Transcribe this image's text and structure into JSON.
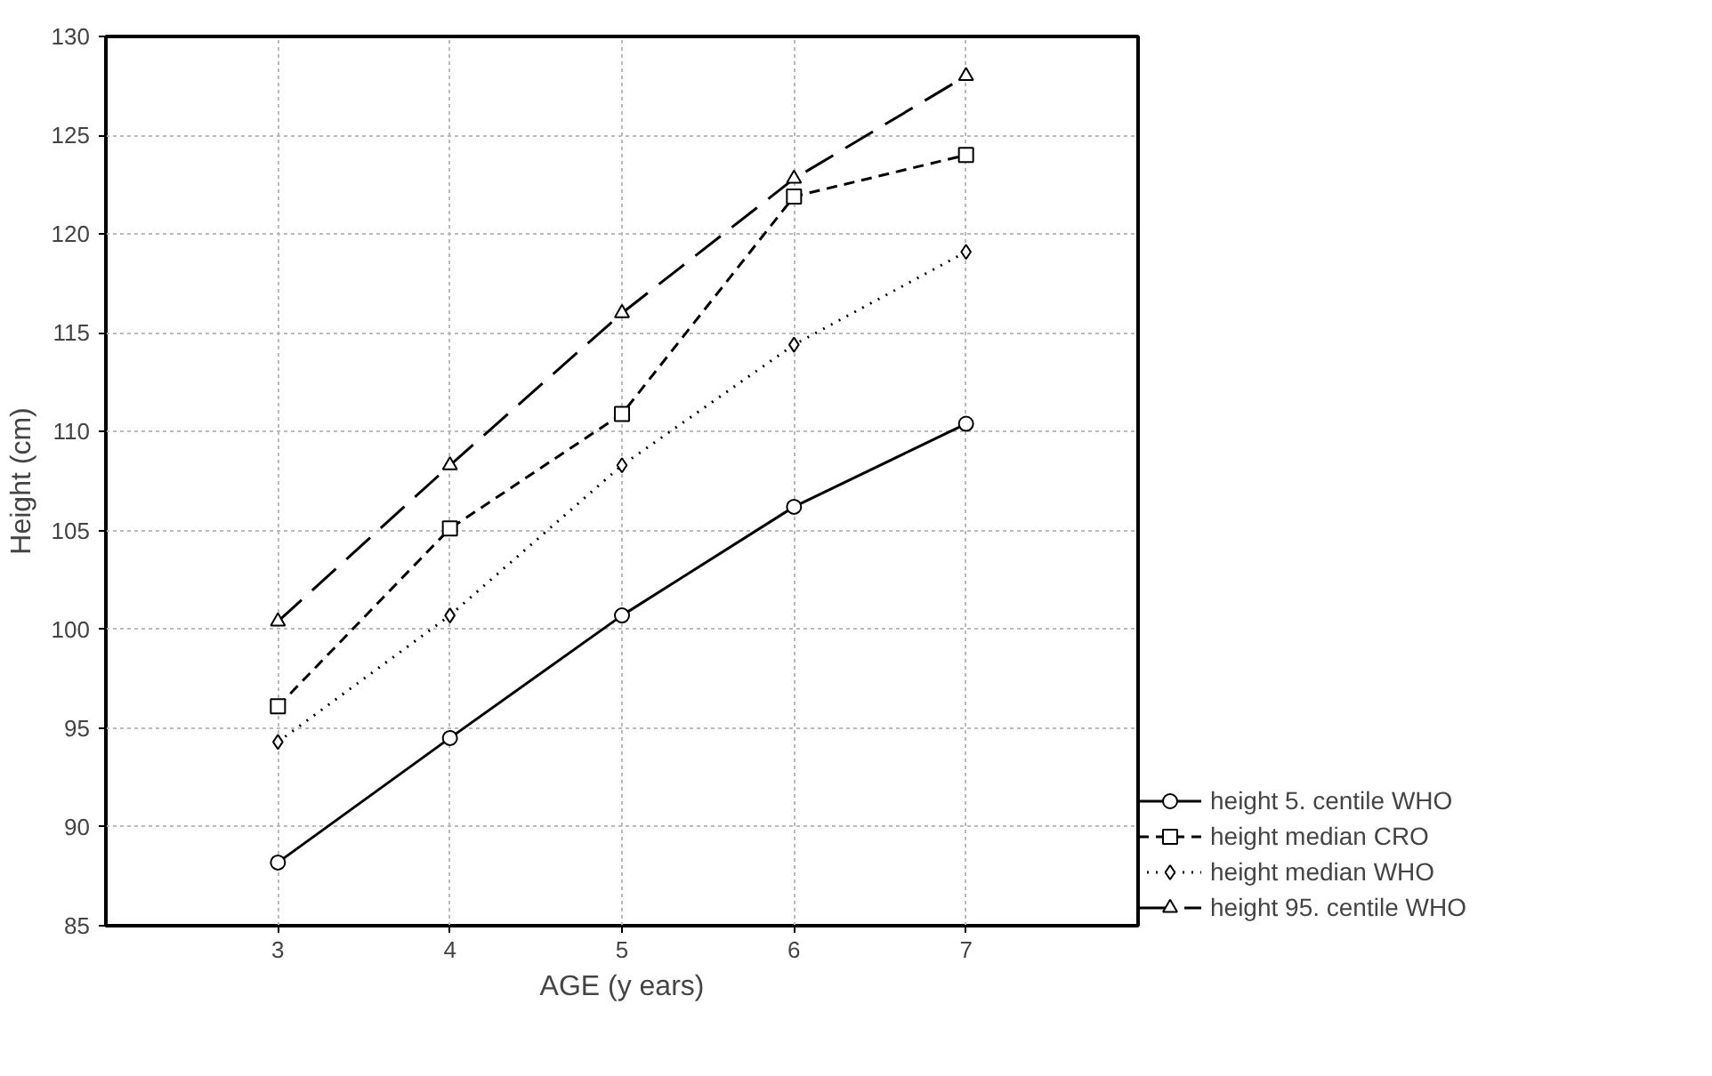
{
  "chart_data": {
    "type": "line",
    "xlabel": "AGE (y ears)",
    "ylabel": "Height (cm)",
    "x": [
      3,
      4,
      5,
      6,
      7
    ],
    "xlim": [
      2,
      8
    ],
    "xticks": [
      3,
      4,
      5,
      6,
      7
    ],
    "ylim": [
      85,
      130
    ],
    "yticks": [
      85,
      90,
      95,
      100,
      105,
      110,
      115,
      120,
      125,
      130
    ],
    "grid": true,
    "legend": "bottom right",
    "series": [
      {
        "name": "height 5. centile WHO",
        "color": "#000000",
        "marker": "circle",
        "line_style": "solid",
        "values": [
          88.2,
          94.5,
          100.7,
          106.2,
          110.4
        ]
      },
      {
        "name": "height median CRO",
        "color": "#000000",
        "marker": "square",
        "line_style": "dashed",
        "values": [
          96.1,
          105.1,
          110.9,
          121.9,
          124.0
        ]
      },
      {
        "name": "height median WHO",
        "color": "#000000",
        "marker": "diamond",
        "line_style": "dotted",
        "values": [
          94.3,
          100.7,
          108.3,
          114.4,
          119.1
        ]
      },
      {
        "name": "height 95. centile WHO",
        "color": "#000000",
        "marker": "triangle",
        "line_style": "longdash",
        "values": [
          100.4,
          108.3,
          116.0,
          122.8,
          128.0
        ]
      }
    ]
  }
}
